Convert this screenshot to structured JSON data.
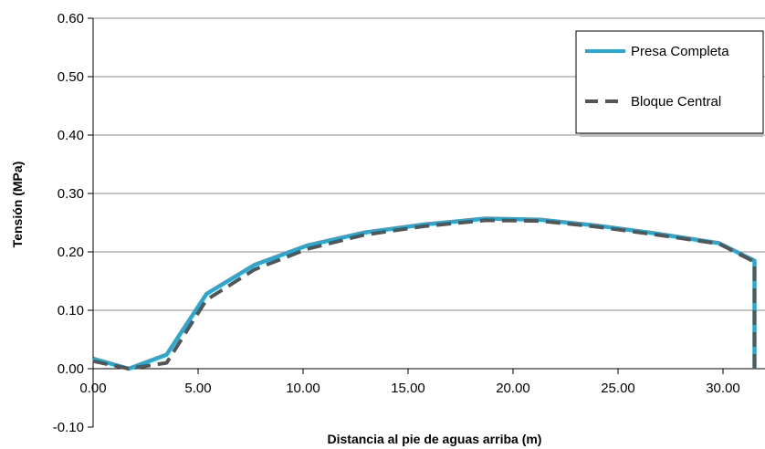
{
  "chart_data": {
    "type": "line",
    "title": "",
    "xlabel": "Distancia al pie de aguas arriba (m)",
    "ylabel": "Tensión (MPa)",
    "xlim": [
      0,
      32
    ],
    "ylim": [
      -0.1,
      0.6
    ],
    "x_ticks": [
      0,
      5,
      10,
      15,
      20,
      25,
      30
    ],
    "x_tick_labels": [
      "0.00",
      "5.00",
      "10.00",
      "15.00",
      "20.00",
      "25.00",
      "30.00"
    ],
    "y_ticks": [
      -0.1,
      0.0,
      0.1,
      0.2,
      0.3,
      0.4,
      0.5,
      0.6
    ],
    "y_tick_labels": [
      "-0.10",
      "0.00",
      "0.10",
      "0.20",
      "0.30",
      "0.40",
      "0.50",
      "0.60"
    ],
    "grid": "horizontal",
    "legend_position": "top-right",
    "series": [
      {
        "name": "Presa Completa",
        "color": "#2aa8d0",
        "style": "solid",
        "x": [
          0.0,
          1.7,
          3.5,
          5.4,
          7.7,
          10.2,
          12.9,
          15.8,
          18.7,
          21.3,
          24.0,
          26.7,
          29.8,
          31.5,
          31.5
        ],
        "y": [
          0.017,
          0.0,
          0.024,
          0.128,
          0.178,
          0.211,
          0.233,
          0.247,
          0.257,
          0.255,
          0.245,
          0.232,
          0.215,
          0.185,
          0.0
        ]
      },
      {
        "name": "Bloque Central",
        "color": "#555555",
        "style": "dashed",
        "x": [
          0.0,
          1.7,
          3.5,
          5.4,
          7.7,
          10.2,
          12.9,
          15.8,
          18.7,
          21.3,
          24.0,
          26.7,
          29.8,
          31.5,
          31.5
        ],
        "y": [
          0.013,
          0.0,
          0.01,
          0.118,
          0.17,
          0.205,
          0.229,
          0.244,
          0.254,
          0.253,
          0.243,
          0.23,
          0.214,
          0.183,
          0.0
        ]
      }
    ]
  }
}
